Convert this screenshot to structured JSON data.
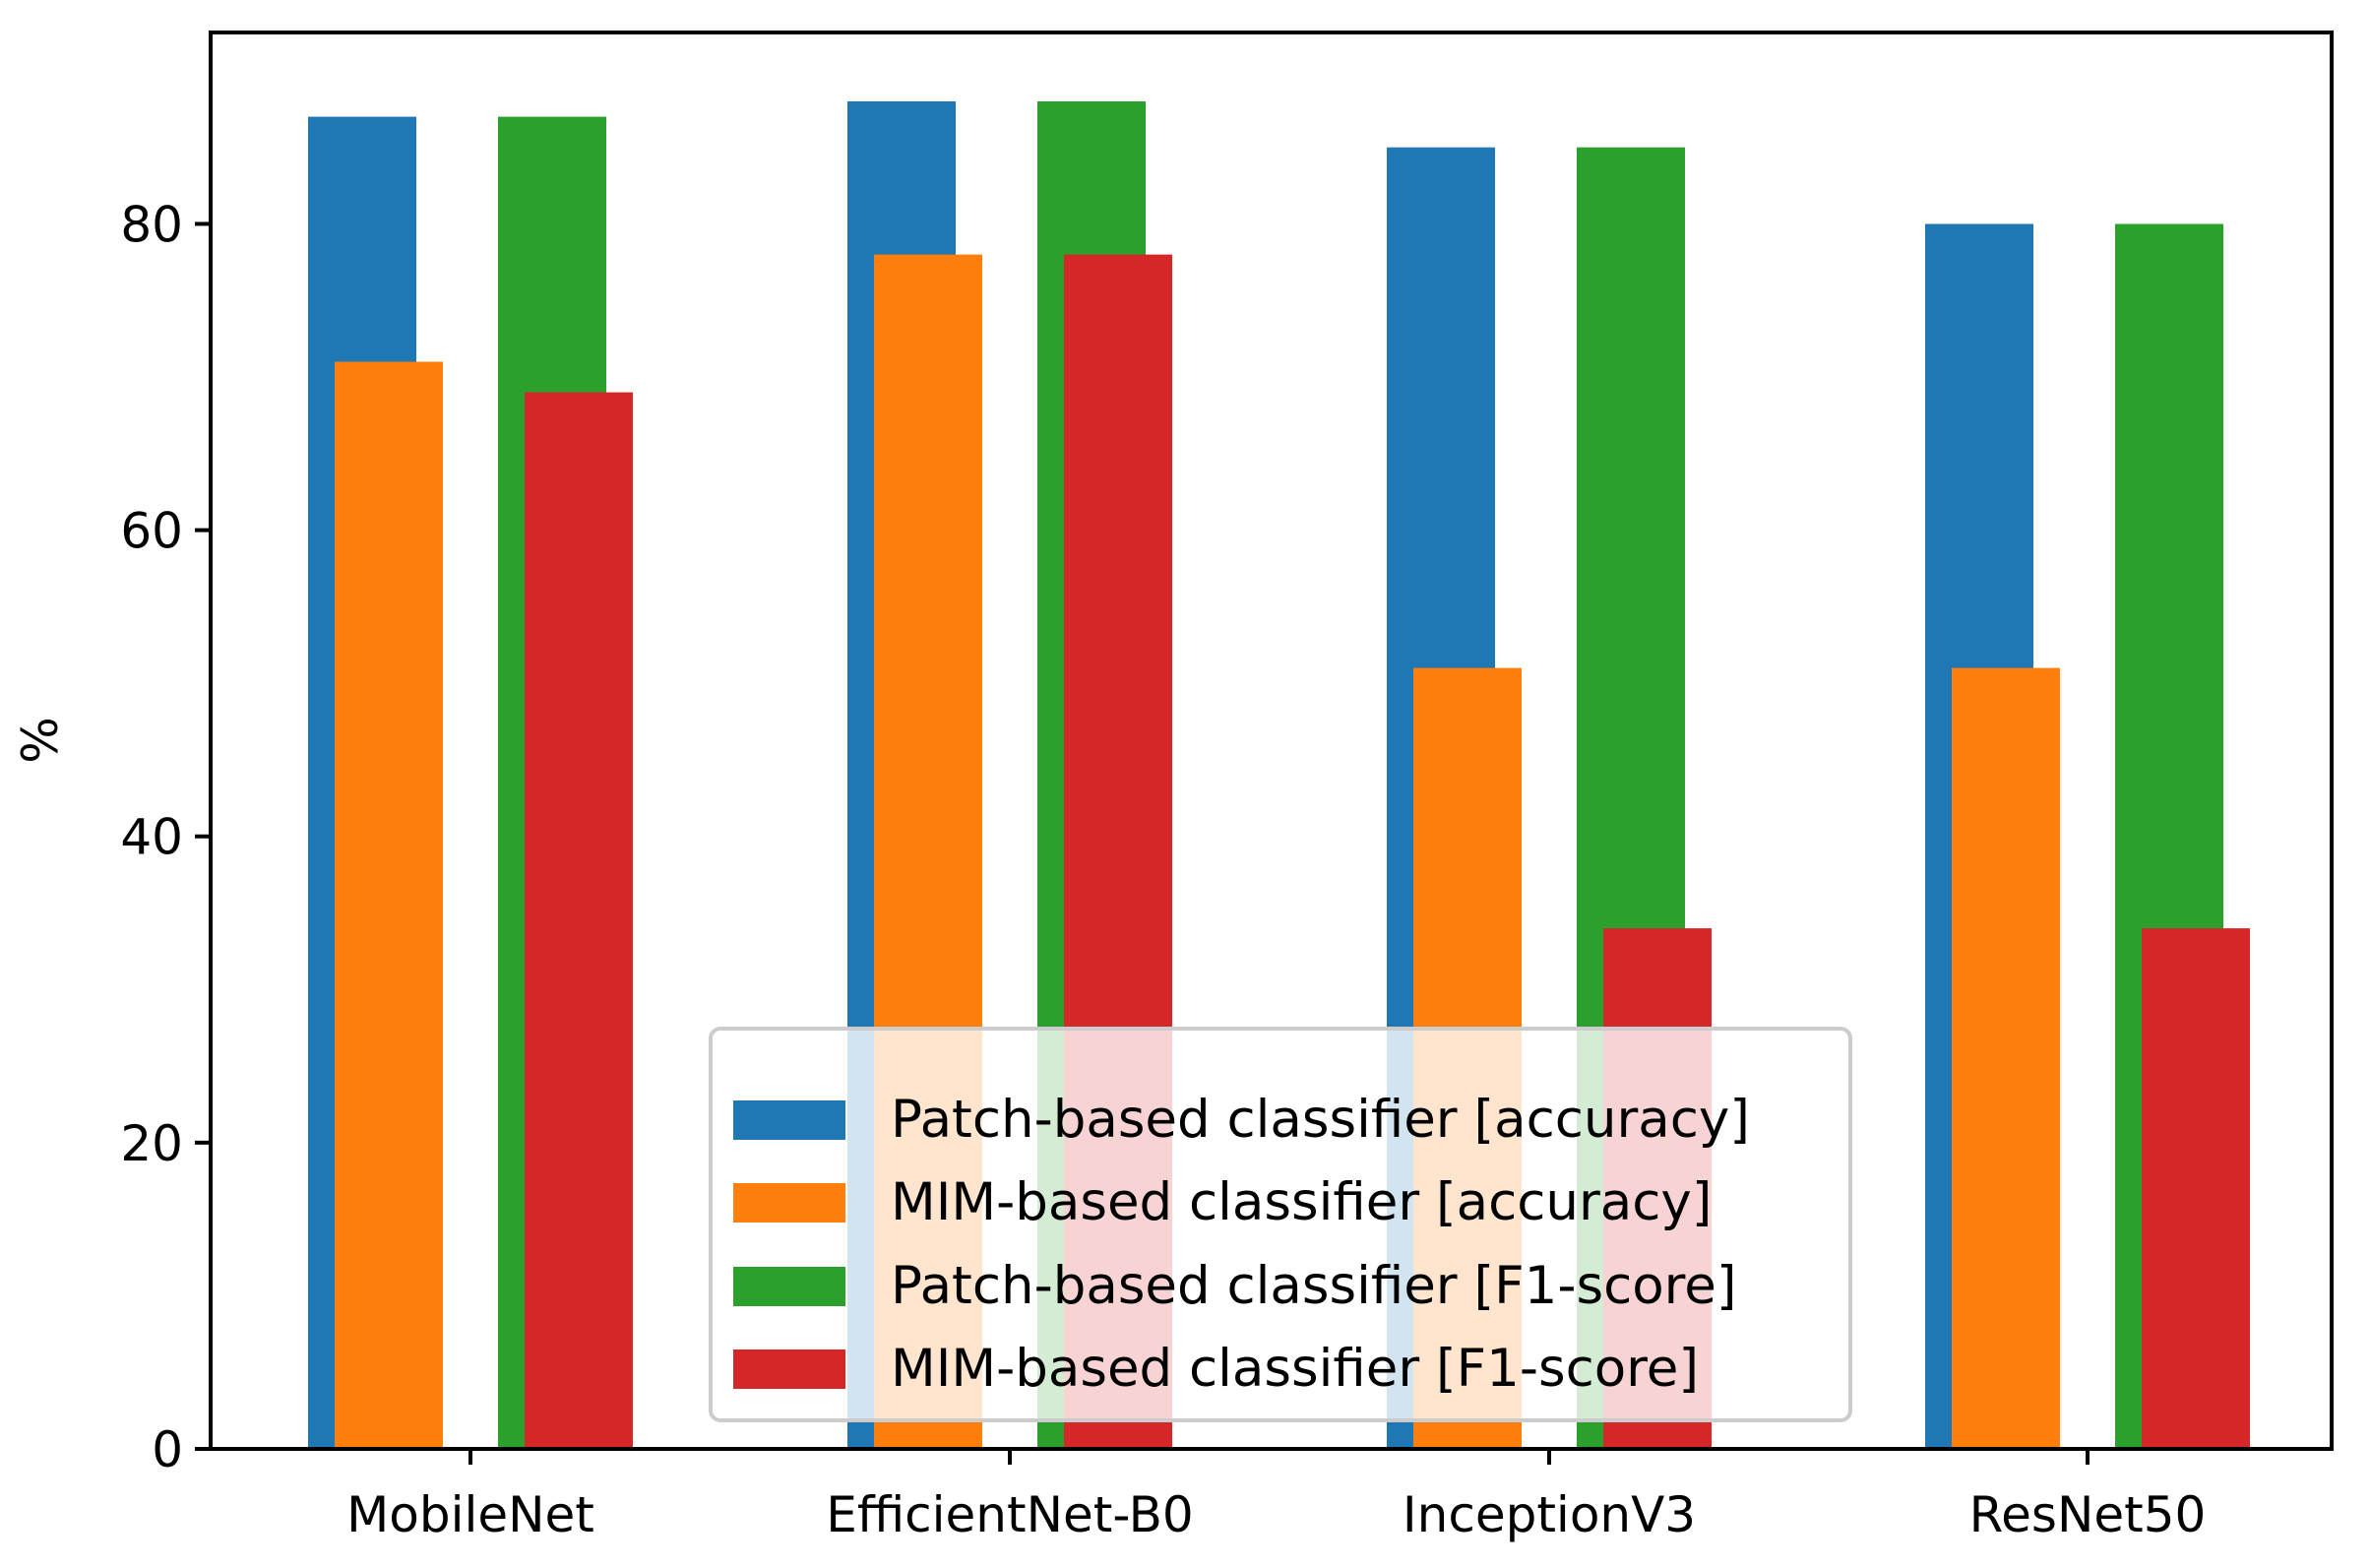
{
  "chart_data": {
    "type": "bar",
    "title": "",
    "xlabel": "",
    "ylabel": "%",
    "ylim": [
      0,
      92.5
    ],
    "yticks": [
      0,
      20,
      40,
      60,
      80
    ],
    "categories": [
      "MobileNet",
      "EfficientNet-B0",
      "InceptionV3",
      "ResNet50"
    ],
    "series": [
      {
        "name": "Patch-based classifier [accuracy]",
        "color": "#1f77b4",
        "values": [
          87,
          88,
          85,
          80
        ]
      },
      {
        "name": "MIM-based classifier [accuracy]",
        "color": "#ff7f0e",
        "values": [
          71,
          78,
          51,
          51
        ]
      },
      {
        "name": "Patch-based classifier [F1-score]",
        "color": "#2ca02c",
        "values": [
          87,
          88,
          85,
          80
        ]
      },
      {
        "name": "MIM-based classifier [F1-score]",
        "color": "#d62728",
        "values": [
          69,
          78,
          34,
          34
        ]
      }
    ],
    "legend": {
      "position": "lower-center"
    },
    "grid": false
  }
}
